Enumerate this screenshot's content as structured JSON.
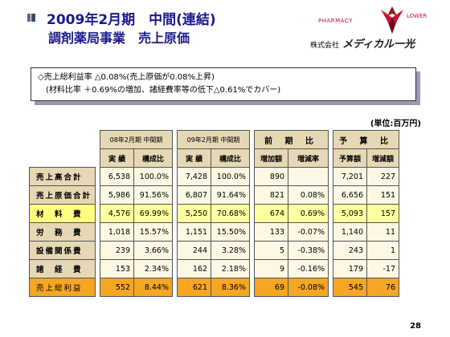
{
  "header": {
    "title_line1": "2009年2月期　中間(連結)",
    "title_line2": "調剤薬局事業　売上原価"
  },
  "logo": {
    "pharmacy": "PHARMACY",
    "lower": "LOWER",
    "company_prefix": "株式会社",
    "company_name": "メディカル一光",
    "accent_color": "#c8102e"
  },
  "callout": {
    "line1": "◇売上総利益率 △0.08%(売上原価が0.08%上昇)",
    "line2": "(材料比率 ＋0.69%の増加、諸経費率等の低下△0.61%でカバー)"
  },
  "unit_label": "(単位:百万円)",
  "table": {
    "group_headers": {
      "prev": "08年2月期 中間期",
      "curr": "09年2月期 中間期",
      "yoy": "前 期 比",
      "budget": "予 算 比"
    },
    "sub_headers": {
      "prev_actual": "実 績",
      "prev_ratio": "構成比",
      "curr_actual": "実 績",
      "curr_ratio": "構成比",
      "yoy_diff": "増加額",
      "yoy_rate": "増減率",
      "budget_amount": "予算額",
      "budget_diff": "増減額"
    },
    "rows": [
      {
        "label": "売上高合計",
        "prev_actual": "6,538",
        "prev_ratio": "100.0%",
        "curr_actual": "7,428",
        "curr_ratio": "100.0%",
        "yoy_diff": "890",
        "yoy_rate": "",
        "budget_amount": "7,201",
        "budget_diff": "227"
      },
      {
        "label": "売上原価合計",
        "prev_actual": "5,986",
        "prev_ratio": "91.56%",
        "curr_actual": "6,807",
        "curr_ratio": "91.64%",
        "yoy_diff": "821",
        "yoy_rate": "0.08%",
        "budget_amount": "6,656",
        "budget_diff": "151"
      },
      {
        "label": "材　料　費",
        "prev_actual": "4,576",
        "prev_ratio": "69.99%",
        "curr_actual": "5,250",
        "curr_ratio": "70.68%",
        "yoy_diff": "674",
        "yoy_rate": "0.69%",
        "budget_amount": "5,093",
        "budget_diff": "157"
      },
      {
        "label": "労　務　費",
        "prev_actual": "1,018",
        "prev_ratio": "15.57%",
        "curr_actual": "1,151",
        "curr_ratio": "15.50%",
        "yoy_diff": "133",
        "yoy_rate": "-0.07%",
        "budget_amount": "1,140",
        "budget_diff": "11"
      },
      {
        "label": "設備関係費",
        "prev_actual": "239",
        "prev_ratio": "3.66%",
        "curr_actual": "244",
        "curr_ratio": "3.28%",
        "yoy_diff": "5",
        "yoy_rate": "-0.38%",
        "budget_amount": "243",
        "budget_diff": "1"
      },
      {
        "label": "諸　経　費",
        "prev_actual": "153",
        "prev_ratio": "2.34%",
        "curr_actual": "162",
        "curr_ratio": "2.18%",
        "yoy_diff": "9",
        "yoy_rate": "-0.16%",
        "budget_amount": "179",
        "budget_diff": "-17"
      },
      {
        "label": "売上総利益",
        "prev_actual": "552",
        "prev_ratio": "8.44%",
        "curr_actual": "621",
        "curr_ratio": "8.36%",
        "yoy_diff": "69",
        "yoy_rate": "-0.08%",
        "budget_amount": "545",
        "budget_diff": "76"
      }
    ]
  },
  "page_number": "28",
  "colors": {
    "title": "#1a1a8c",
    "header_bg": "#e6d8b4",
    "body_bg": "#fdf8e4",
    "material_row": "#ffffa0",
    "gross_profit_row": "#f5a623"
  }
}
